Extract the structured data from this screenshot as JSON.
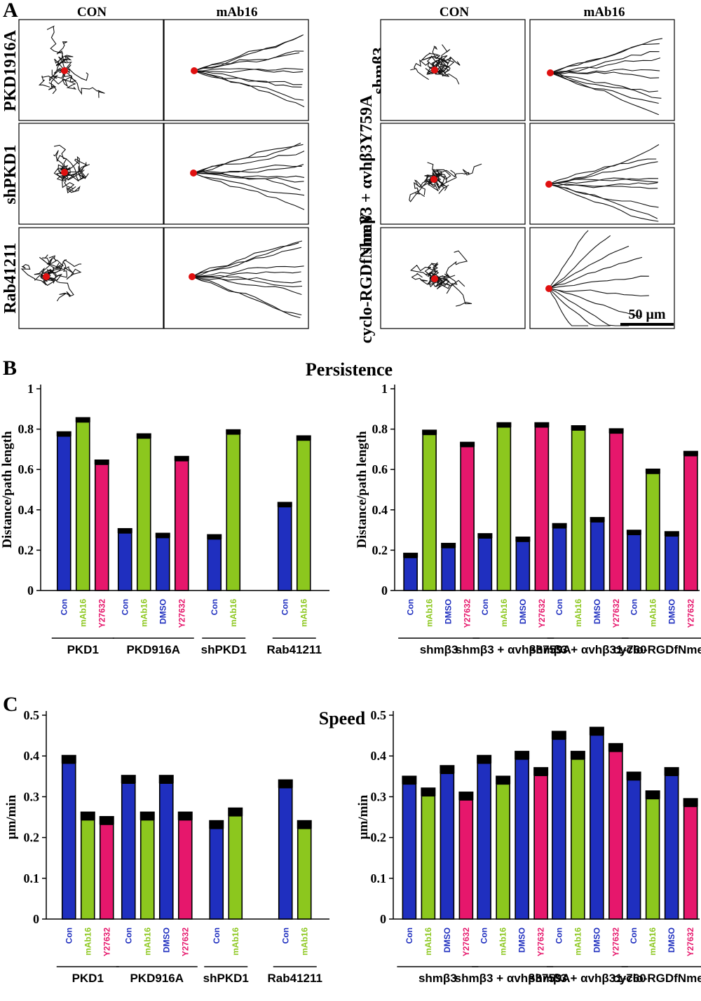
{
  "panel_a": {
    "label": "A",
    "col_titles": [
      "CON",
      "mAb16",
      "CON",
      "mAb16"
    ],
    "row_labels_left": [
      "PKD1916A",
      "shPKD1",
      "Rab41211"
    ],
    "row_labels_right": [
      "shmβ3",
      "shmβ3 + αvhβ3Y759A",
      "cyclo-RGDfNmeV"
    ],
    "scale_bar": "50 μm"
  },
  "colors": {
    "Con": "#1f2fbf",
    "DMSO": "#1f2fbf",
    "mAb16": "#8cc71e",
    "Y27632": "#e6176c"
  },
  "chart_data": [
    {
      "id": "persistence-left",
      "panel_label": "B",
      "type": "bar",
      "title": "Persistence",
      "ylabel": "Distance/path length",
      "ylim": [
        0,
        1
      ],
      "yticks": [
        "0",
        "0.2",
        "0.4",
        "0.6",
        "0.8",
        "1"
      ],
      "groups": [
        {
          "name": "PKD1",
          "bars": [
            {
              "label": "Con",
              "value": 0.765
            },
            {
              "label": "mAb16",
              "value": 0.835
            },
            {
              "label": "Y27632",
              "value": 0.625
            }
          ]
        },
        {
          "name": "PKD916A",
          "bars": [
            {
              "label": "Con",
              "value": 0.285
            },
            {
              "label": "mAb16",
              "value": 0.755
            },
            {
              "label": "DMSO",
              "value": 0.262
            },
            {
              "label": "Y27632",
              "value": 0.643
            }
          ]
        },
        {
          "name": "shPKD1",
          "bars": [
            {
              "label": "Con",
              "value": 0.255
            },
            {
              "label": "mAb16",
              "value": 0.775
            }
          ]
        },
        {
          "name": "Rab41211",
          "bars": [
            {
              "label": "Con",
              "value": 0.415
            },
            {
              "label": "mAb16",
              "value": 0.745
            }
          ]
        }
      ]
    },
    {
      "id": "persistence-right",
      "type": "bar",
      "ylabel": "Distance/path length",
      "ylim": [
        0,
        1
      ],
      "yticks": [
        "0",
        "0.2",
        "0.4",
        "0.6",
        "0.8",
        "1"
      ],
      "groups": [
        {
          "name": "shmβ3",
          "bars": [
            {
              "label": "Con",
              "value": 0.163
            },
            {
              "label": "mAb16",
              "value": 0.773
            },
            {
              "label": "DMSO",
              "value": 0.212
            },
            {
              "label": "Y27632",
              "value": 0.713
            }
          ]
        },
        {
          "name": "shmβ3 + αvhβ3759A",
          "bars": [
            {
              "label": "Con",
              "value": 0.26
            },
            {
              "label": "mAb16",
              "value": 0.81
            },
            {
              "label": "DMSO",
              "value": 0.243
            },
            {
              "label": "Y27632",
              "value": 0.81
            }
          ]
        },
        {
          "name": "shmβ3 + αvhβ31-760",
          "bars": [
            {
              "label": "Con",
              "value": 0.31
            },
            {
              "label": "mAb16",
              "value": 0.795
            },
            {
              "label": "DMSO",
              "value": 0.34
            },
            {
              "label": "Y27632",
              "value": 0.78
            }
          ]
        },
        {
          "name": "cyclo-RGDfNmeV",
          "bars": [
            {
              "label": "Con",
              "value": 0.277
            },
            {
              "label": "mAb16",
              "value": 0.58
            },
            {
              "label": "DMSO",
              "value": 0.27
            },
            {
              "label": "Y27632",
              "value": 0.668
            }
          ]
        }
      ]
    },
    {
      "id": "speed-left",
      "panel_label": "C",
      "type": "bar",
      "title": "Speed",
      "ylabel": "μm/min",
      "ylim": [
        0,
        0.5
      ],
      "yticks": [
        "0",
        "0.1",
        "0.2",
        "0.3",
        "0.4",
        "0.5"
      ],
      "groups": [
        {
          "name": "PKD1",
          "bars": [
            {
              "label": "Con",
              "value": 0.382
            },
            {
              "label": "mAb16",
              "value": 0.243
            },
            {
              "label": "Y27632",
              "value": 0.232
            }
          ]
        },
        {
          "name": "PKD916A",
          "bars": [
            {
              "label": "Con",
              "value": 0.333
            },
            {
              "label": "mAb16",
              "value": 0.243
            },
            {
              "label": "DMSO",
              "value": 0.333
            },
            {
              "label": "Y27632",
              "value": 0.243
            }
          ]
        },
        {
          "name": "shPKD1",
          "bars": [
            {
              "label": "Con",
              "value": 0.222
            },
            {
              "label": "mAb16",
              "value": 0.253
            }
          ]
        },
        {
          "name": "Rab41211",
          "bars": [
            {
              "label": "Con",
              "value": 0.322
            },
            {
              "label": "mAb16",
              "value": 0.222
            }
          ]
        }
      ]
    },
    {
      "id": "speed-right",
      "type": "bar",
      "ylabel": "μm/min",
      "ylim": [
        0,
        0.5
      ],
      "yticks": [
        "0",
        "0.1",
        "0.2",
        "0.3",
        "0.4",
        "0.5"
      ],
      "groups": [
        {
          "name": "shmβ3",
          "bars": [
            {
              "label": "Con",
              "value": 0.331
            },
            {
              "label": "mAb16",
              "value": 0.302
            },
            {
              "label": "DMSO",
              "value": 0.357
            },
            {
              "label": "Y27632",
              "value": 0.292
            }
          ]
        },
        {
          "name": "shmβ3 + αvhβ3759A",
          "bars": [
            {
              "label": "Con",
              "value": 0.382
            },
            {
              "label": "mAb16",
              "value": 0.331
            },
            {
              "label": "DMSO",
              "value": 0.392
            },
            {
              "label": "Y27632",
              "value": 0.352
            }
          ]
        },
        {
          "name": "shmβ3 + αvhβ31-760",
          "bars": [
            {
              "label": "Con",
              "value": 0.441
            },
            {
              "label": "mAb16",
              "value": 0.392
            },
            {
              "label": "DMSO",
              "value": 0.451
            },
            {
              "label": "Y27632",
              "value": 0.411
            }
          ]
        },
        {
          "name": "cyclo-RGDfNmeV",
          "bars": [
            {
              "label": "Con",
              "value": 0.341
            },
            {
              "label": "mAb16",
              "value": 0.295
            },
            {
              "label": "DMSO",
              "value": 0.352
            },
            {
              "label": "Y27632",
              "value": 0.276
            }
          ]
        }
      ]
    }
  ]
}
